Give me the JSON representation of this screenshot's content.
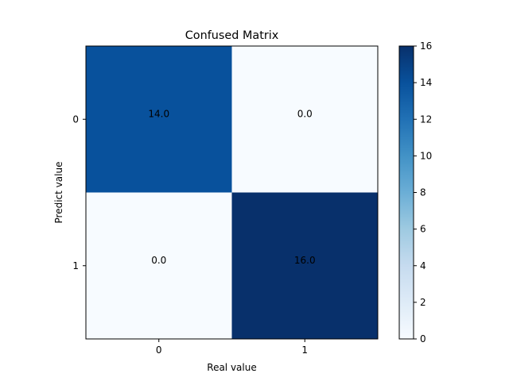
{
  "chart_data": {
    "type": "heatmap",
    "title": "Confused Matrix",
    "xlabel": "Real value",
    "ylabel": "Predict value",
    "x_categories": [
      "0",
      "1"
    ],
    "y_categories": [
      "0",
      "1"
    ],
    "values": [
      [
        14.0,
        0.0
      ],
      [
        0.0,
        16.0
      ]
    ],
    "cell_labels": [
      [
        "14.0",
        "0.0"
      ],
      [
        "0.0",
        "16.0"
      ]
    ],
    "colormap": "Blues",
    "color_range": [
      0,
      16
    ],
    "colorbar_ticks": [
      "0",
      "2",
      "4",
      "6",
      "8",
      "10",
      "12",
      "14",
      "16"
    ],
    "grid": false,
    "colors": {
      "low": "#f7fbff",
      "high": "#08306b"
    }
  }
}
